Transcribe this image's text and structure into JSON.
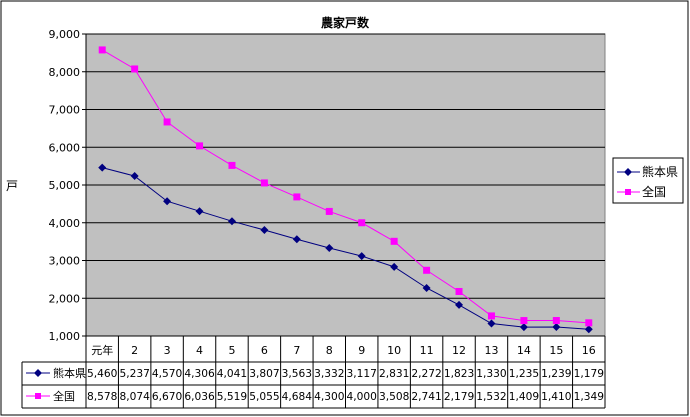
{
  "chart_data": {
    "type": "line",
    "title": "農家戸数",
    "ylabel": "戸",
    "xlabel": "",
    "ylim": [
      1000,
      9000
    ],
    "yticks": [
      "1,000",
      "2,000",
      "3,000",
      "4,000",
      "5,000",
      "6,000",
      "7,000",
      "8,000",
      "9,000"
    ],
    "categories": [
      "元年",
      "2",
      "3",
      "4",
      "5",
      "6",
      "7",
      "8",
      "9",
      "10",
      "11",
      "12",
      "13",
      "14",
      "15",
      "16"
    ],
    "grid": true,
    "legend": "right",
    "data_table": true,
    "series": [
      {
        "name": "熊本県",
        "color": "#000080",
        "marker": "diamond",
        "values": [
          5460,
          5237,
          4570,
          4306,
          4041,
          3807,
          3563,
          3332,
          3117,
          2831,
          2272,
          1823,
          1330,
          1235,
          1239,
          1179
        ],
        "labels": [
          "5,460",
          "5,237",
          "4,570",
          "4,306",
          "4,041",
          "3,807",
          "3,563",
          "3,332",
          "3,117",
          "2,831",
          "2,272",
          "1,823",
          "1,330",
          "1,235",
          "1,239",
          "1,179"
        ]
      },
      {
        "name": "全国",
        "color": "#FF00FF",
        "marker": "square",
        "values": [
          8578,
          8074,
          6670,
          6036,
          5519,
          5055,
          4684,
          4300,
          4000,
          3508,
          2741,
          2179,
          1532,
          1409,
          1410,
          1349
        ],
        "labels": [
          "8,578",
          "8,074",
          "6,670",
          "6,036",
          "5,519",
          "5,055",
          "4,684",
          "4,300",
          "4,000",
          "3,508",
          "2,741",
          "2,179",
          "1,532",
          "1,409",
          "1,410",
          "1,349"
        ]
      }
    ],
    "plot_background": "#C0C0C0"
  }
}
